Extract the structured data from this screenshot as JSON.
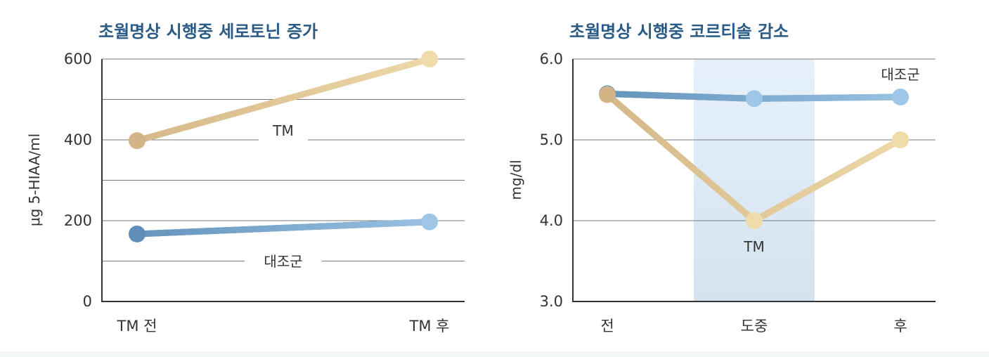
{
  "chart_data": [
    {
      "type": "line",
      "title": "초월명상 시행중 세로토닌 증가",
      "ylabel": "μg 5-HIAA/ml",
      "xlabel": "",
      "categories": [
        "TM 전",
        "TM 후"
      ],
      "ylim": [
        0,
        600
      ],
      "yticks": [
        0,
        200,
        400,
        600
      ],
      "grid": true,
      "series": [
        {
          "name": "TM",
          "values": [
            398,
            600
          ],
          "color_start": "#d2b487",
          "color_end": "#f0dcaa"
        },
        {
          "name": "대조군",
          "values": [
            167,
            197
          ],
          "color_start": "#5f8fb8",
          "color_end": "#9ec6e6"
        }
      ]
    },
    {
      "type": "line",
      "title": "초월명상 시행중 코르티솔 감소",
      "ylabel": "mg/dl",
      "xlabel": "",
      "categories": [
        "전",
        "도중",
        "후"
      ],
      "ylim": [
        3.0,
        6.0
      ],
      "yticks": [
        "3.0",
        "4.0",
        "5.0",
        "6.0"
      ],
      "grid": true,
      "highlight_category": "도중",
      "series": [
        {
          "name": "대조군",
          "values": [
            5.57,
            5.51,
            5.53
          ],
          "color_start": "#5f8fb8",
          "color_end": "#9ec6e6"
        },
        {
          "name": "TM",
          "values": [
            5.56,
            4.0,
            5.0
          ],
          "color_start": "#d2b487",
          "color_end": "#f0dcaa"
        }
      ]
    }
  ]
}
